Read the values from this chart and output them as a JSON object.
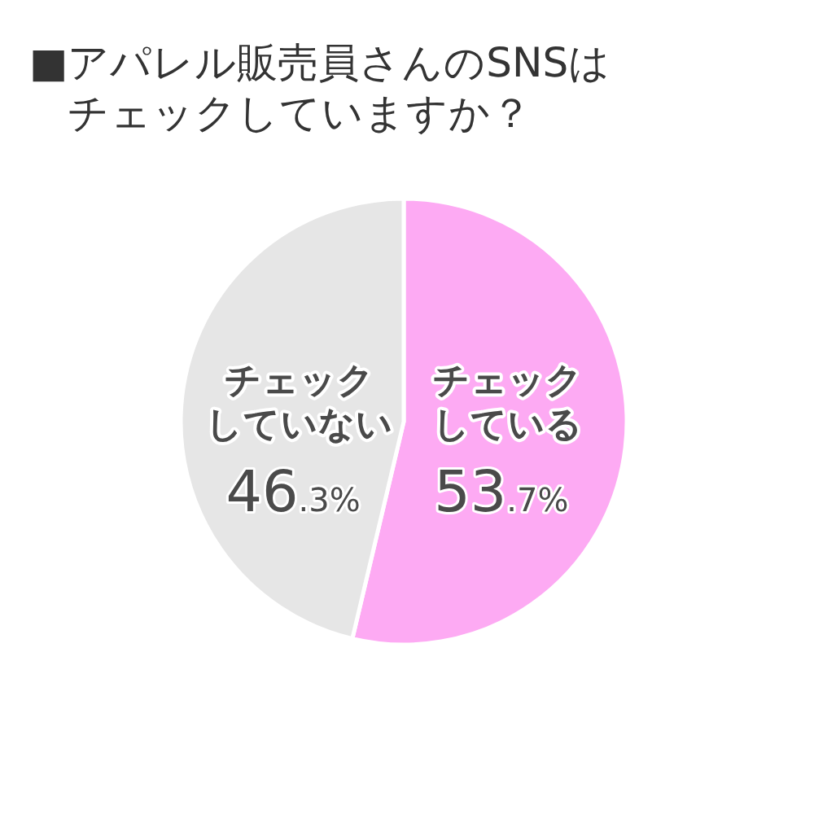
{
  "chart_data": {
    "type": "pie",
    "title": "■アパレル販売員さんのSNSはチェックしていますか？",
    "categories": [
      "チェックしている",
      "チェックしていない"
    ],
    "values": [
      53.7,
      46.3
    ],
    "colors": [
      "#fdaaf3",
      "#e6e6e6"
    ],
    "value_labels": [
      "53.7%",
      "46.3%"
    ],
    "legend": false
  }
}
